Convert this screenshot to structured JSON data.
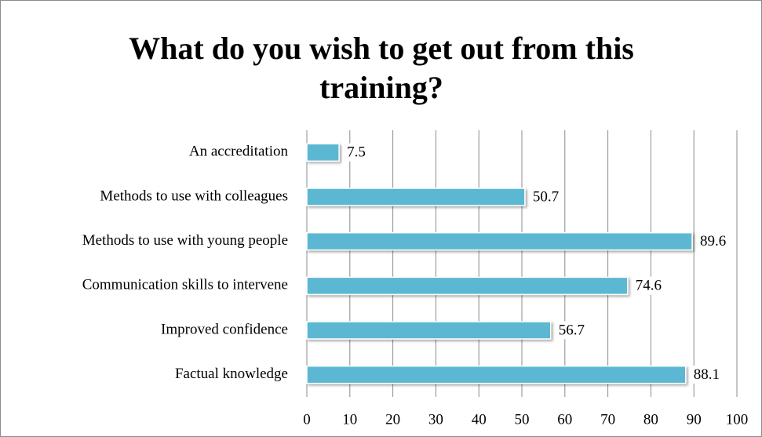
{
  "chart_data": {
    "type": "bar",
    "orientation": "horizontal",
    "title": "What do you wish to get out from this training?",
    "categories": [
      "An accreditation",
      "Methods to use with colleagues",
      "Methods to use with young people",
      "Communication skills to intervene",
      "Improved confidence",
      "Factual knowledge"
    ],
    "values": [
      7.5,
      50.7,
      89.6,
      74.6,
      56.7,
      88.1
    ],
    "color": "#5bb8d2",
    "xlim": [
      0,
      100
    ],
    "xticks": [
      0,
      10,
      20,
      30,
      40,
      50,
      60,
      70,
      80,
      90,
      100
    ],
    "grid": true
  }
}
